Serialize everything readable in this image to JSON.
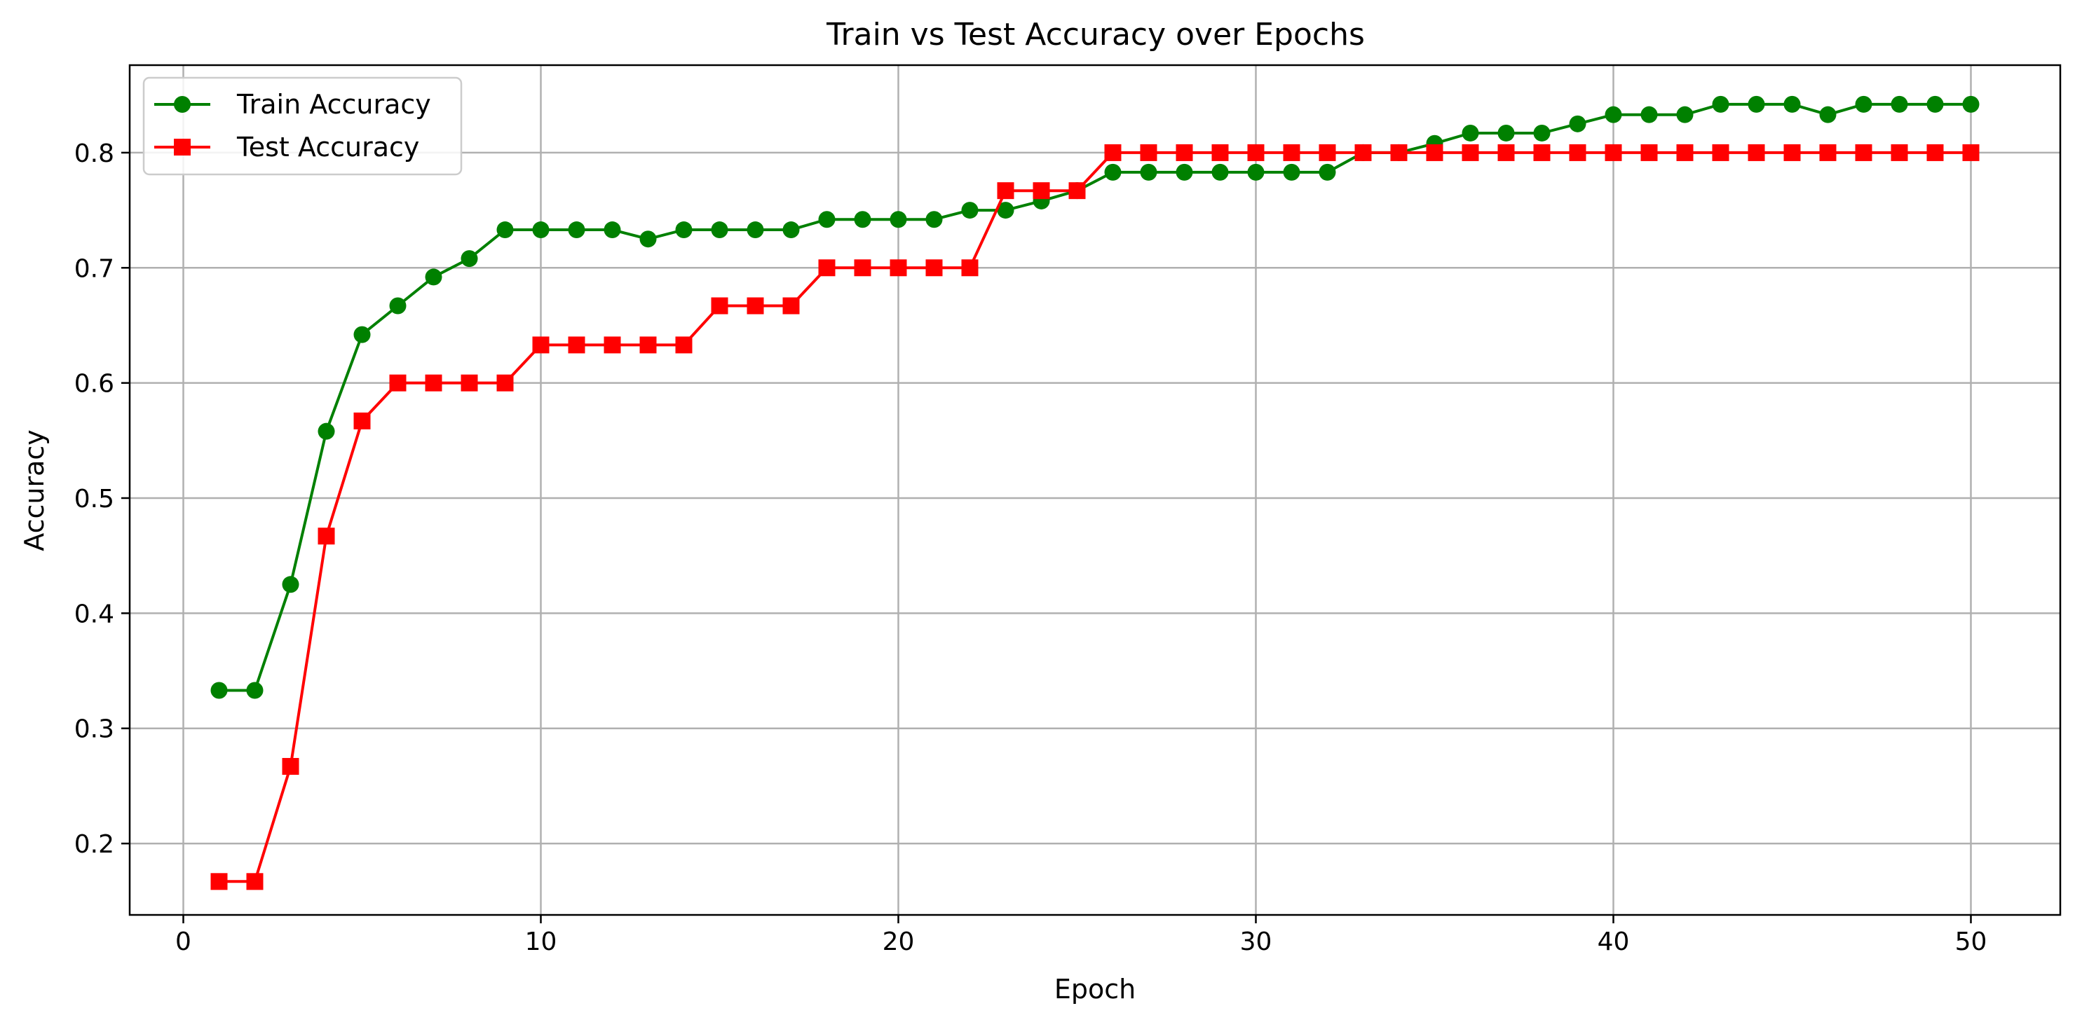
{
  "chart_data": {
    "type": "line",
    "title": "Train vs Test Accuracy over Epochs",
    "xlabel": "Epoch",
    "ylabel": "Accuracy",
    "xlim": [
      -1.5,
      52.5
    ],
    "ylim": [
      0.138,
      0.876
    ],
    "xticks": [
      0,
      10,
      20,
      30,
      40,
      50
    ],
    "yticks": [
      0.2,
      0.3,
      0.4,
      0.5,
      0.6,
      0.7,
      0.8
    ],
    "xtick_labels": [
      "0",
      "10",
      "20",
      "30",
      "40",
      "50"
    ],
    "ytick_labels": [
      "0.2",
      "0.3",
      "0.4",
      "0.5",
      "0.6",
      "0.7",
      "0.8"
    ],
    "grid": true,
    "legend_position": "top-left",
    "x": [
      1,
      2,
      3,
      4,
      5,
      6,
      7,
      8,
      9,
      10,
      11,
      12,
      13,
      14,
      15,
      16,
      17,
      18,
      19,
      20,
      21,
      22,
      23,
      24,
      25,
      26,
      27,
      28,
      29,
      30,
      31,
      32,
      33,
      34,
      35,
      36,
      37,
      38,
      39,
      40,
      41,
      42,
      43,
      44,
      45,
      46,
      47,
      48,
      49,
      50
    ],
    "series": [
      {
        "name": "Train Accuracy",
        "color": "#008000",
        "marker": "circle",
        "values": [
          0.333,
          0.333,
          0.425,
          0.558,
          0.642,
          0.667,
          0.692,
          0.708,
          0.733,
          0.733,
          0.733,
          0.733,
          0.725,
          0.733,
          0.733,
          0.733,
          0.733,
          0.742,
          0.742,
          0.742,
          0.742,
          0.75,
          0.75,
          0.758,
          0.767,
          0.783,
          0.783,
          0.783,
          0.783,
          0.783,
          0.783,
          0.783,
          0.8,
          0.8,
          0.808,
          0.817,
          0.817,
          0.817,
          0.825,
          0.833,
          0.833,
          0.833,
          0.842,
          0.842,
          0.842,
          0.833,
          0.842,
          0.842,
          0.842,
          0.842
        ]
      },
      {
        "name": "Test Accuracy",
        "color": "#ff0000",
        "marker": "square",
        "values": [
          0.167,
          0.167,
          0.267,
          0.467,
          0.567,
          0.6,
          0.6,
          0.6,
          0.6,
          0.633,
          0.633,
          0.633,
          0.633,
          0.633,
          0.667,
          0.667,
          0.667,
          0.7,
          0.7,
          0.7,
          0.7,
          0.7,
          0.767,
          0.767,
          0.767,
          0.8,
          0.8,
          0.8,
          0.8,
          0.8,
          0.8,
          0.8,
          0.8,
          0.8,
          0.8,
          0.8,
          0.8,
          0.8,
          0.8,
          0.8,
          0.8,
          0.8,
          0.8,
          0.8,
          0.8,
          0.8,
          0.8,
          0.8,
          0.8,
          0.8
        ]
      }
    ]
  }
}
